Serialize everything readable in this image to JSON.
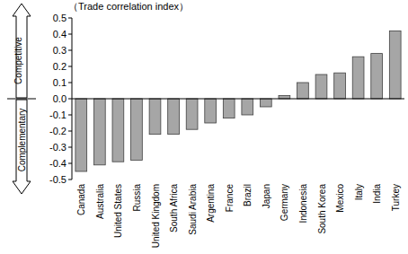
{
  "chart_data": {
    "type": "bar",
    "y_label": "（Trade correlation index）",
    "categories": [
      "Canada",
      "Australia",
      "United States",
      "Russia",
      "United Kingdom",
      "South Africa",
      "Saudi Arabia",
      "Argentina",
      "France",
      "Brazil",
      "Japan",
      "Germany",
      "Indonesia",
      "South Korea",
      "Mexico",
      "Italy",
      "India",
      "Turkey"
    ],
    "values": [
      -0.45,
      -0.41,
      -0.39,
      -0.38,
      -0.22,
      -0.22,
      -0.19,
      -0.15,
      -0.12,
      -0.1,
      -0.05,
      0.02,
      0.1,
      0.15,
      0.16,
      0.26,
      0.28,
      0.42
    ],
    "color": "#a6a6a6",
    "ylim": [
      -0.5,
      0.5
    ],
    "yticks": [
      -0.5,
      -0.4,
      -0.3,
      -0.2,
      -0.1,
      {
        "value": 0,
        "label": "0.0"
      },
      0.1,
      0.2,
      0.3,
      0.4,
      0.5
    ],
    "grid": false,
    "annotations": [
      "Competitive",
      "Complementary"
    ]
  }
}
